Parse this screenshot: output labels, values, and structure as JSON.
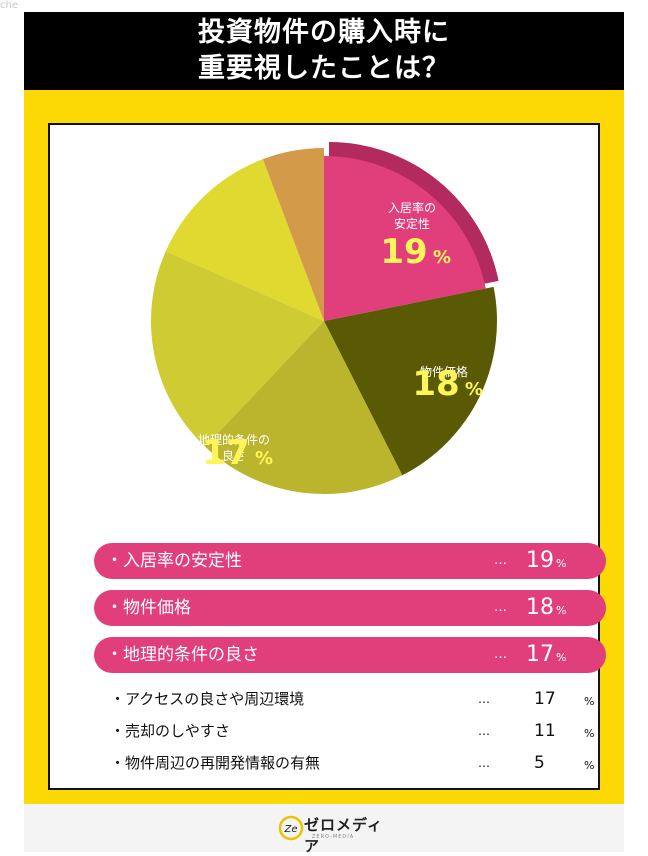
{
  "corner_text": "che",
  "title_lines": [
    "投資物件の購入時に",
    "重要視したことは？"
  ],
  "chart_data": {
    "type": "pie",
    "title": "投資物件の購入時に重要視したことは？",
    "slices": [
      {
        "label": "入居率の安定性",
        "value": 19,
        "color": "#e03f7c",
        "highlight": true
      },
      {
        "label": "物件価格",
        "value": 18,
        "color": "#5a5a05"
      },
      {
        "label": "地理的条件の良さ",
        "value": 17,
        "color": "#bab52c"
      },
      {
        "label": "アクセスの良さや周辺環境",
        "value": 17,
        "color": "#cfcc33"
      },
      {
        "label": "売却のしやすさ",
        "value": 11,
        "color": "#e0d930"
      },
      {
        "label": "物件周辺の再開発情報の有無",
        "value": 5,
        "color": "#d39a4a"
      }
    ],
    "unit": "%"
  },
  "pie_labels": [
    {
      "text_lines": [
        "入居率の",
        "安定性"
      ],
      "value": "19",
      "unit": "%"
    },
    {
      "text_lines": [
        "物件価格"
      ],
      "value": "18",
      "unit": "%"
    },
    {
      "text_lines": [
        "地理的条件の",
        "良さ"
      ],
      "value": "17",
      "unit": "%"
    }
  ],
  "ranking": [
    {
      "label": "・入居率の安定性",
      "dots": "…",
      "value": "19",
      "unit": "%"
    },
    {
      "label": "・物件価格",
      "dots": "…",
      "value": "18",
      "unit": "%"
    },
    {
      "label": "・地理的条件の良さ",
      "dots": "…",
      "value": "17",
      "unit": "%"
    },
    {
      "label": "・アクセスの良さや周辺環境",
      "dots": "…",
      "value": "17",
      "unit": "%"
    },
    {
      "label": "・売却のしやすさ",
      "dots": "…",
      "value": "11",
      "unit": "%"
    },
    {
      "label": "・物件周辺の再開発情報の有無",
      "dots": "…",
      "value": "5",
      "unit": "%"
    }
  ],
  "footer": {
    "logo_text": "ゼロメディア",
    "logo_sub": "ZERO-MEDIA",
    "logo_mark": "Ze"
  }
}
